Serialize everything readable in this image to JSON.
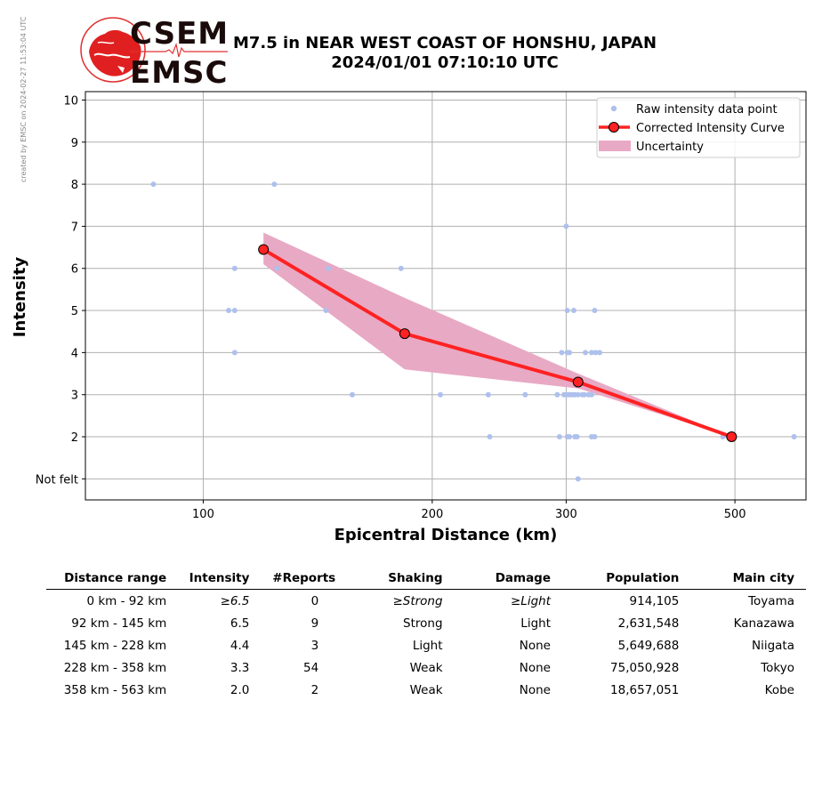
{
  "credit": "created by EMSC on 2024-02-27 11:53:04 UTC",
  "logo": {
    "line1": "CSEM",
    "line2": "EMSC"
  },
  "title": {
    "line1": "M7.5 in NEAR WEST COAST OF HONSHU, JAPAN",
    "line2": "2024/01/01 07:10:10 UTC"
  },
  "chart_data": {
    "type": "scatter",
    "xlabel": "Epicentral Distance (km)",
    "ylabel": "Intensity",
    "xscale": "log",
    "xlim": [
      70,
      620
    ],
    "ylim": [
      0.5,
      10.2
    ],
    "xticks": [
      {
        "value": 100,
        "label": "100"
      },
      {
        "value": 200,
        "label": "200"
      },
      {
        "value": 300,
        "label": "300"
      },
      {
        "value": 500,
        "label": "500"
      }
    ],
    "yticks": [
      {
        "value": 1,
        "label": "Not felt"
      },
      {
        "value": 2,
        "label": "2"
      },
      {
        "value": 3,
        "label": "3"
      },
      {
        "value": 4,
        "label": "4"
      },
      {
        "value": 5,
        "label": "5"
      },
      {
        "value": 6,
        "label": "6"
      },
      {
        "value": 7,
        "label": "7"
      },
      {
        "value": 8,
        "label": "8"
      },
      {
        "value": 9,
        "label": "9"
      },
      {
        "value": 10,
        "label": "10"
      }
    ],
    "grid": true,
    "legend_position": "top-right",
    "raw_points": {
      "name": "Raw intensity data point",
      "color": "#aec0ec",
      "points": [
        [
          86,
          8
        ],
        [
          124,
          8
        ],
        [
          300,
          7
        ],
        [
          110,
          6
        ],
        [
          125,
          6
        ],
        [
          146,
          6
        ],
        [
          182,
          6
        ],
        [
          108,
          5
        ],
        [
          110,
          5
        ],
        [
          145,
          5
        ],
        [
          301,
          5
        ],
        [
          307,
          5
        ],
        [
          327,
          5
        ],
        [
          110,
          4
        ],
        [
          296,
          4
        ],
        [
          301,
          4
        ],
        [
          303,
          4
        ],
        [
          318,
          4
        ],
        [
          324,
          4
        ],
        [
          328,
          4
        ],
        [
          332,
          4
        ],
        [
          157,
          3
        ],
        [
          205,
          3
        ],
        [
          237,
          3
        ],
        [
          265,
          3
        ],
        [
          292,
          3
        ],
        [
          298,
          3
        ],
        [
          300,
          3
        ],
        [
          302,
          3
        ],
        [
          304,
          3
        ],
        [
          306,
          3
        ],
        [
          308,
          3
        ],
        [
          311,
          3
        ],
        [
          315,
          3
        ],
        [
          317,
          3
        ],
        [
          321,
          3
        ],
        [
          324,
          3
        ],
        [
          238,
          2
        ],
        [
          294,
          2
        ],
        [
          301,
          2
        ],
        [
          303,
          2
        ],
        [
          308,
          2
        ],
        [
          310,
          2
        ],
        [
          324,
          2
        ],
        [
          327,
          2
        ],
        [
          482,
          2
        ],
        [
          490,
          2
        ],
        [
          598,
          2
        ],
        [
          311,
          1
        ]
      ]
    },
    "curve": {
      "name": "Corrected Intensity Curve",
      "color": "#ff2222",
      "points": [
        [
          120,
          6.45
        ],
        [
          184,
          4.45
        ],
        [
          311,
          3.3
        ],
        [
          495,
          2.0
        ]
      ]
    },
    "uncertainty": {
      "name": "Uncertainty",
      "color": "#e8a9c4",
      "upper": [
        [
          120,
          6.85
        ],
        [
          184,
          5.3
        ],
        [
          311,
          3.5
        ],
        [
          495,
          2.0
        ]
      ],
      "lower": [
        [
          120,
          6.1
        ],
        [
          184,
          3.6
        ],
        [
          311,
          3.15
        ],
        [
          495,
          2.0
        ]
      ]
    }
  },
  "table": {
    "headers": [
      "Distance range",
      "Intensity",
      "#Reports",
      "Shaking",
      "Damage",
      "Population",
      "Main city"
    ],
    "rows": [
      {
        "range": "0 km -   92 km",
        "intensity": "≥6.5",
        "reports": "0",
        "shaking": "≥Strong",
        "damage": "≥Light",
        "population": "914,105",
        "city": "Toyama",
        "italic": true
      },
      {
        "range": "92 km -  145 km",
        "intensity": "6.5",
        "reports": "9",
        "shaking": "Strong",
        "damage": "Light",
        "population": "2,631,548",
        "city": "Kanazawa",
        "italic": false
      },
      {
        "range": "145 km -  228 km",
        "intensity": "4.4",
        "reports": "3",
        "shaking": "Light",
        "damage": "None",
        "population": "5,649,688",
        "city": "Niigata",
        "italic": false
      },
      {
        "range": "228 km -  358 km",
        "intensity": "3.3",
        "reports": "54",
        "shaking": "Weak",
        "damage": "None",
        "population": "75,050,928",
        "city": "Tokyo",
        "italic": false
      },
      {
        "range": "358 km -  563 km",
        "intensity": "2.0",
        "reports": "2",
        "shaking": "Weak",
        "damage": "None",
        "population": "18,657,051",
        "city": "Kobe",
        "italic": false
      }
    ]
  }
}
